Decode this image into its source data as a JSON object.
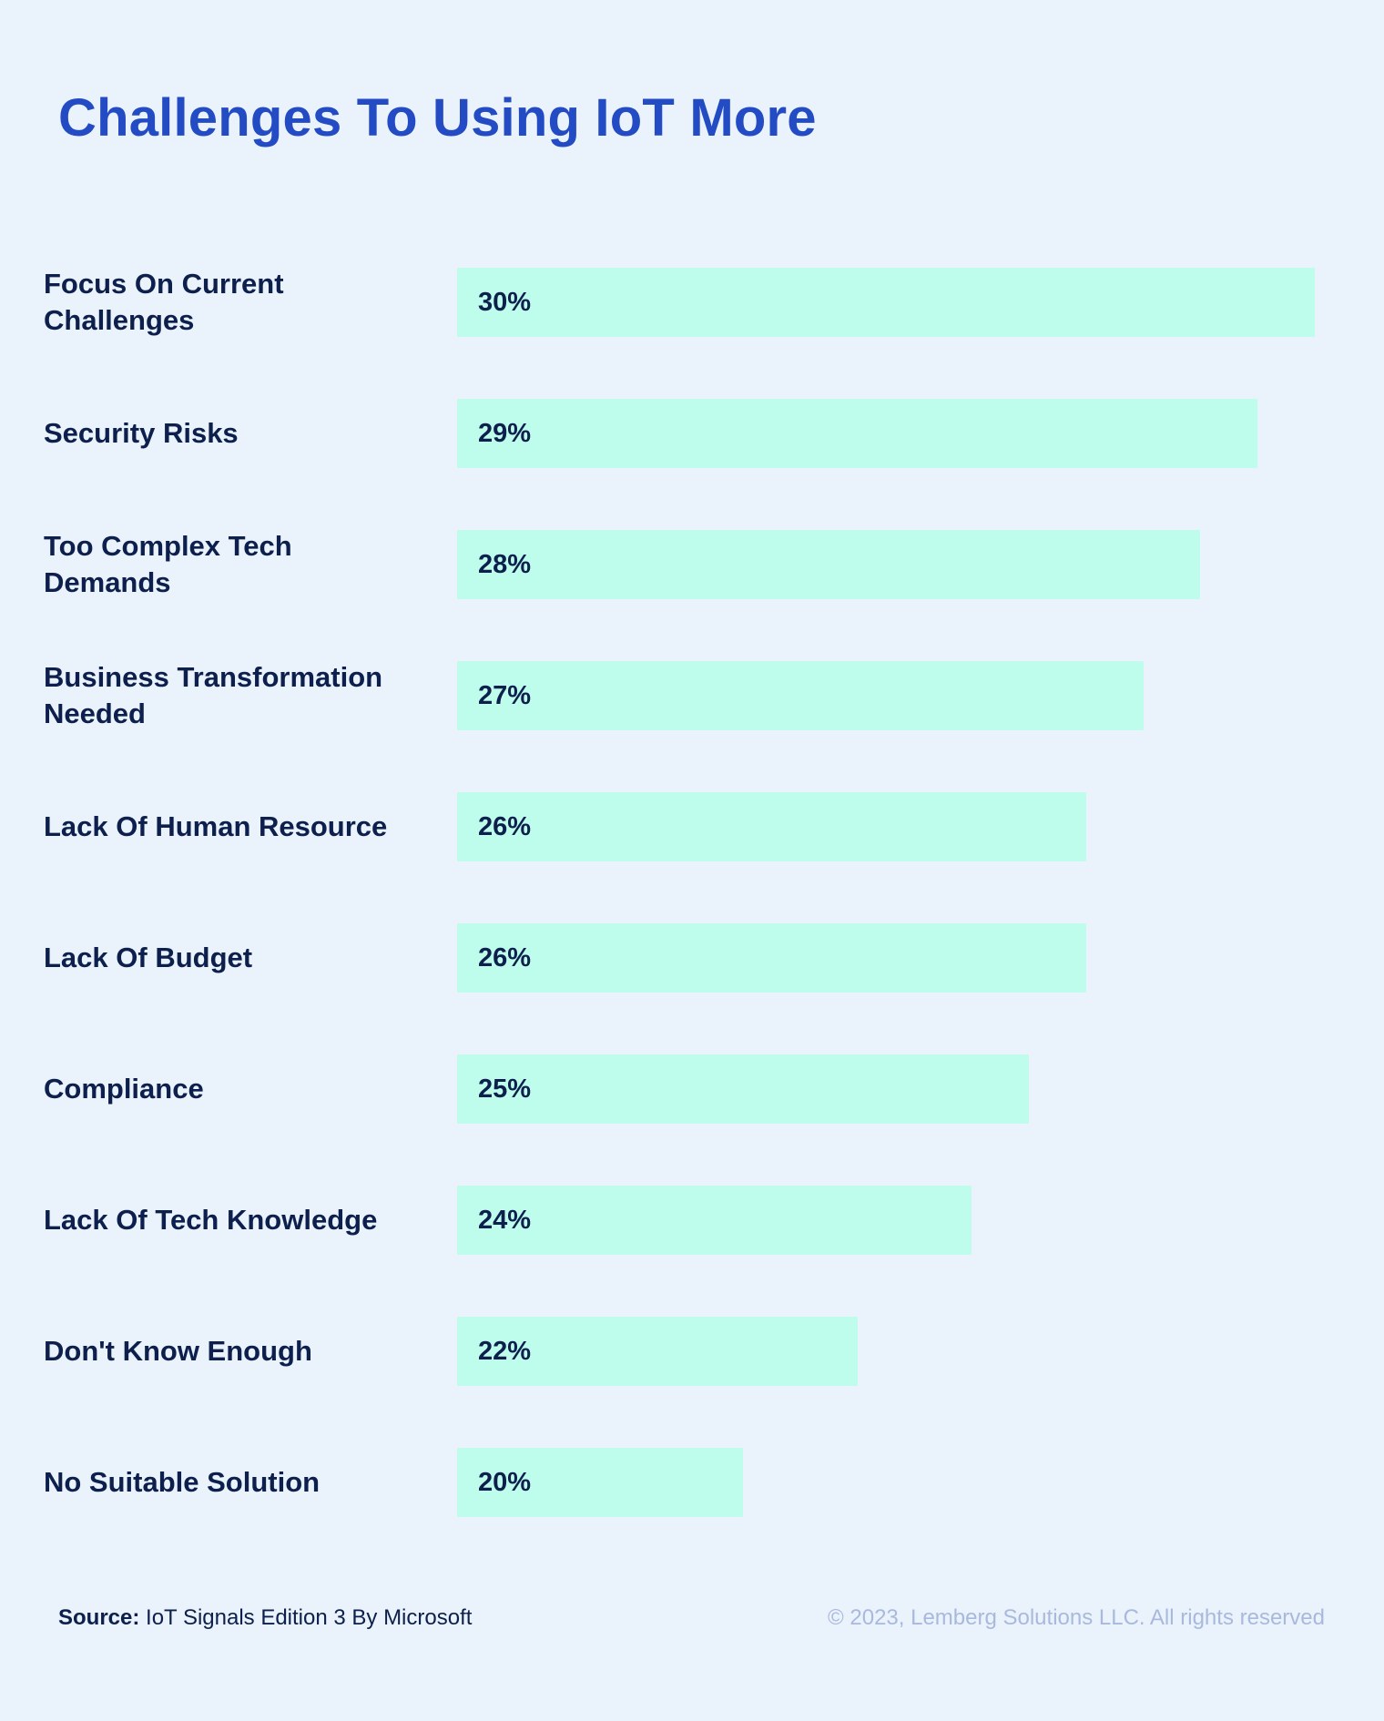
{
  "colors": {
    "background": "#EAF2FB",
    "title": "#234BC3",
    "bar": "#BEFCEB",
    "text": "#0D1F4C",
    "copyright": "#A9B9DE"
  },
  "chart_data": {
    "type": "bar",
    "orientation": "horizontal",
    "title": "Challenges To Using IoT More",
    "categories": [
      "Focus On Current Challenges",
      "Security Risks",
      "Too Complex Tech Demands",
      "Business Transformation Needed",
      "Lack Of Human Resource",
      "Lack Of Budget",
      "Compliance",
      "Lack Of Tech Knowledge",
      "Don't Know Enough",
      "No Suitable Solution"
    ],
    "values": [
      30,
      29,
      28,
      27,
      26,
      26,
      25,
      24,
      22,
      20
    ],
    "value_labels": [
      "30%",
      "29%",
      "28%",
      "27%",
      "26%",
      "26%",
      "25%",
      "24%",
      "22%",
      "20%"
    ],
    "xlim": [
      15,
      30
    ],
    "grid": false,
    "legend": "none",
    "data_labels": "inside-left"
  },
  "footer": {
    "source_label": "Source:",
    "source_text": " IoT Signals Edition 3 By Microsoft",
    "copyright": "© 2023, Lemberg Solutions LLC. All rights reserved"
  }
}
